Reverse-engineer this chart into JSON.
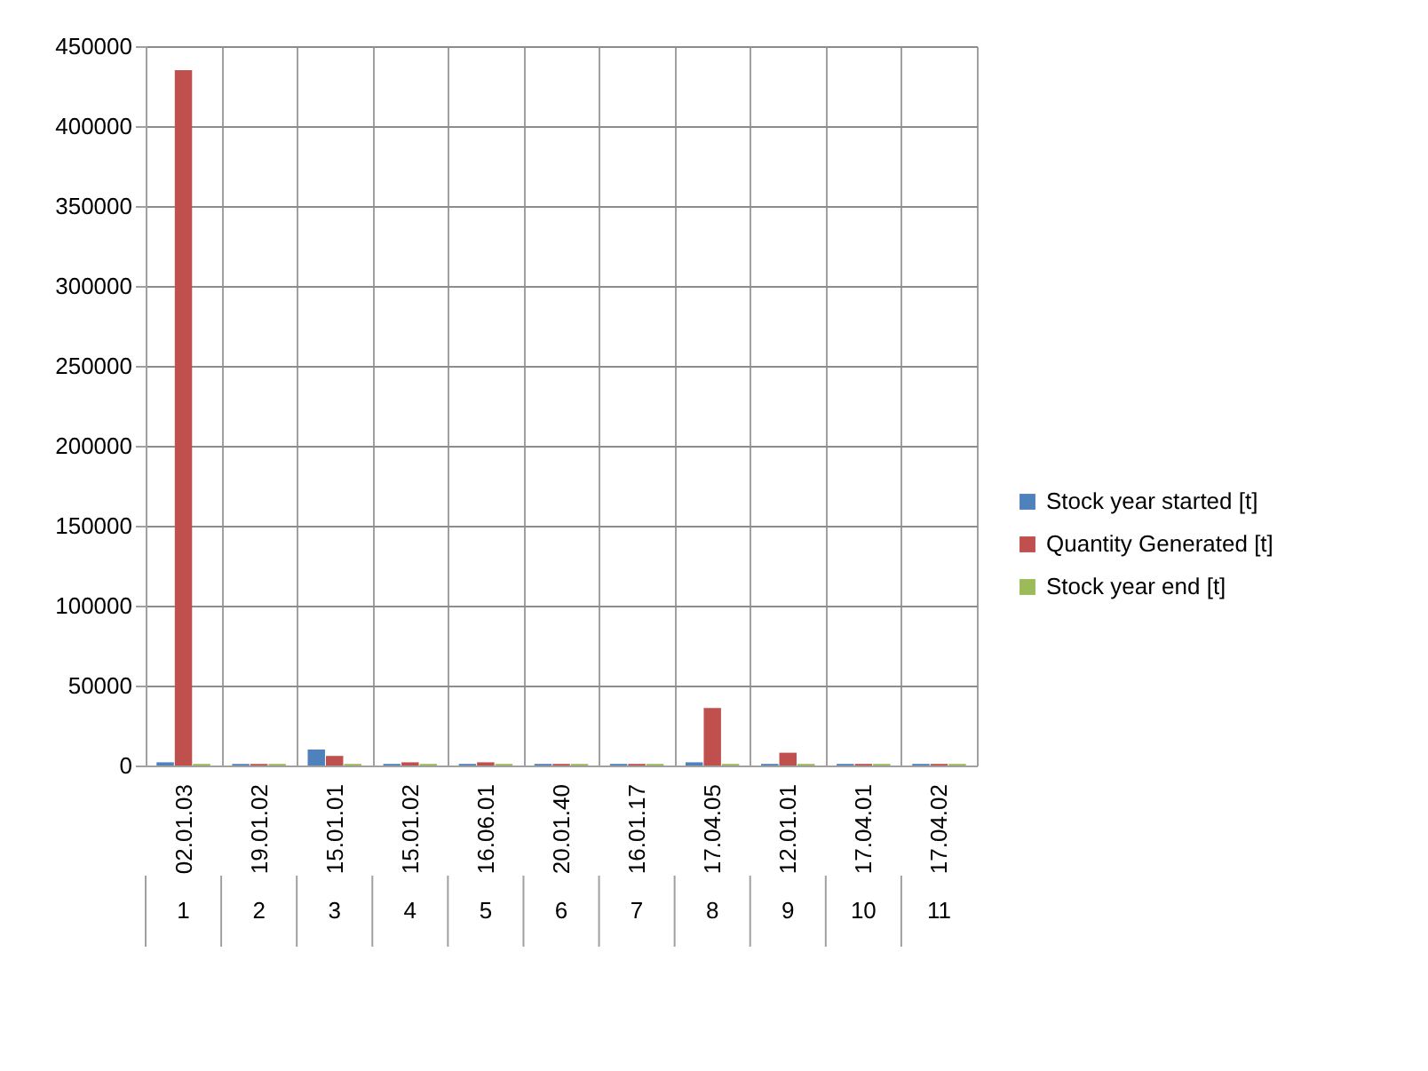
{
  "chart_data": {
    "type": "bar",
    "categories": [
      "02.01.03",
      "19.01.02",
      "15.01.01",
      "15.01.02",
      "16.06.01",
      "20.01.40",
      "16.01.17",
      "17.04.05",
      "12.01.01",
      "17.04.01",
      "17.04.02"
    ],
    "series": [
      {
        "name": "Stock year started [t]",
        "color": "#4f81bd",
        "values": [
          2000,
          1000,
          10000,
          1000,
          1000,
          1000,
          1000,
          2000,
          1000,
          1000,
          1000
        ]
      },
      {
        "name": "Quantity Generated [t]",
        "color": "#c0504d",
        "values": [
          435000,
          1000,
          6000,
          2000,
          2000,
          1000,
          1000,
          36000,
          8000,
          1000,
          1000
        ]
      },
      {
        "name": "Stock year end [t]",
        "color": "#9bbb59",
        "values": [
          1000,
          1000,
          1000,
          1000,
          1000,
          1000,
          1000,
          1000,
          1000,
          1000,
          1000
        ]
      }
    ],
    "ylim": [
      0,
      450000
    ],
    "yticks": [
      0,
      50000,
      100000,
      150000,
      200000,
      250000,
      300000,
      350000,
      400000,
      450000
    ],
    "grid": "y",
    "legend": "right",
    "annotations": [
      "1",
      "2",
      "3",
      "4",
      "5",
      "6",
      "7",
      "8",
      "9",
      "10",
      "11"
    ]
  }
}
